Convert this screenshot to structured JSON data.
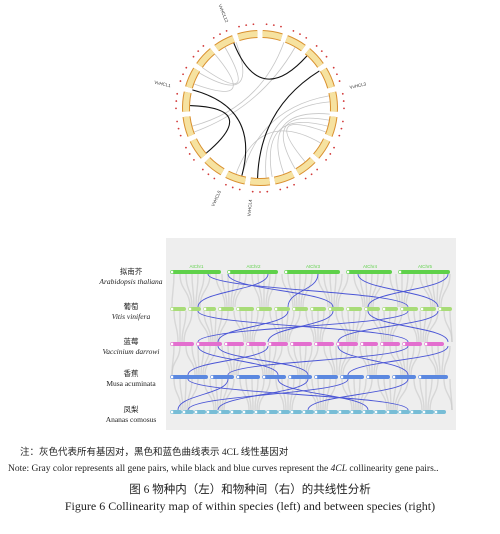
{
  "circos": {
    "gene_labels": [
      "VvHCL12",
      "VvHCL1",
      "VvHCL3",
      "VvHCL5",
      "VvHCL4"
    ],
    "chromosome_count": 19
  },
  "synteny": {
    "species": [
      {
        "cn": "拟南芥",
        "latin": "Arabidopsis thaliana",
        "italic": true,
        "color": "#5fd14a",
        "chroms": [
          "AtChr1",
          "AtChr2",
          "AtChr3",
          "AtChr4",
          "AtChr5"
        ]
      },
      {
        "cn": "葡萄",
        "latin": "Vitis vinifera",
        "italic": true,
        "color": "#a8dc78",
        "chroms": []
      },
      {
        "cn": "蓝莓",
        "latin": "Vaccinium darrowi",
        "italic": true,
        "color": "#e36fcf",
        "chroms": []
      },
      {
        "cn": "香蕉",
        "latin": "Musa acuminata",
        "italic": false,
        "color": "#5b88e0",
        "chroms": []
      },
      {
        "cn": "凤梨",
        "latin": "Ananas comosus",
        "italic": false,
        "color": "#77bdd6",
        "chroms": []
      }
    ]
  },
  "caption": {
    "note_cn": "注：灰色代表所有基因对，黑色和蓝色曲线表示 4CL 线性基因对",
    "note_en_before": "Note: Gray color represents all gene pairs, while black and blue curves represent the ",
    "note_en_gene": "4CL",
    "note_en_after": " collinearity gene pairs..",
    "figure_cn": "图 6  物种内（左）和物种间（右）的共线性分析",
    "figure_en": "Figure 6 Collinearity map of within species (left) and between species (right)"
  }
}
